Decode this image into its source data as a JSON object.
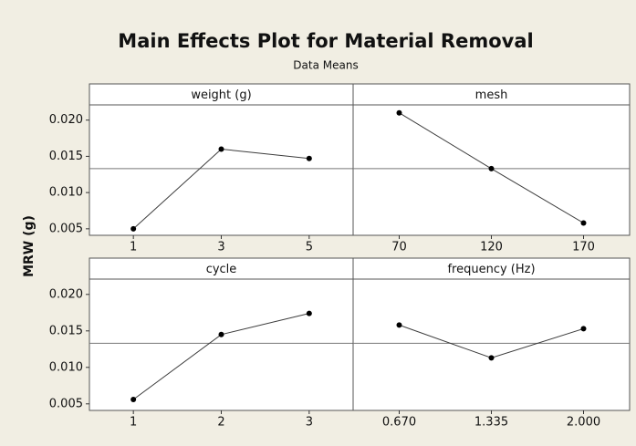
{
  "chart_data": {
    "type": "line",
    "title": "Main Effects Plot for Material Removal",
    "subtitle": "Data Means",
    "y_label": "MRW (g)",
    "ylim": [
      0.0041,
      0.0221
    ],
    "yticks": [
      {
        "value": 0.005,
        "label": "0.005"
      },
      {
        "value": 0.01,
        "label": "0.010"
      },
      {
        "value": 0.015,
        "label": "0.015"
      },
      {
        "value": 0.02,
        "label": "0.020"
      }
    ],
    "mean": 0.0133,
    "color": "#3c3c3c",
    "panels": [
      {
        "title": "weight (g)",
        "categories": [
          "1",
          "3",
          "5"
        ],
        "values": [
          0.005,
          0.016,
          0.0147
        ]
      },
      {
        "title": "mesh",
        "categories": [
          "70",
          "120",
          "170"
        ],
        "values": [
          0.021,
          0.0133,
          0.0058
        ]
      },
      {
        "title": "cycle",
        "categories": [
          "1",
          "2",
          "3"
        ],
        "values": [
          0.0056,
          0.0145,
          0.0174
        ]
      },
      {
        "title": "frequency (Hz)",
        "categories": [
          "0.670",
          "1.335",
          "2.000"
        ],
        "values": [
          0.0158,
          0.0113,
          0.0153
        ]
      }
    ]
  }
}
